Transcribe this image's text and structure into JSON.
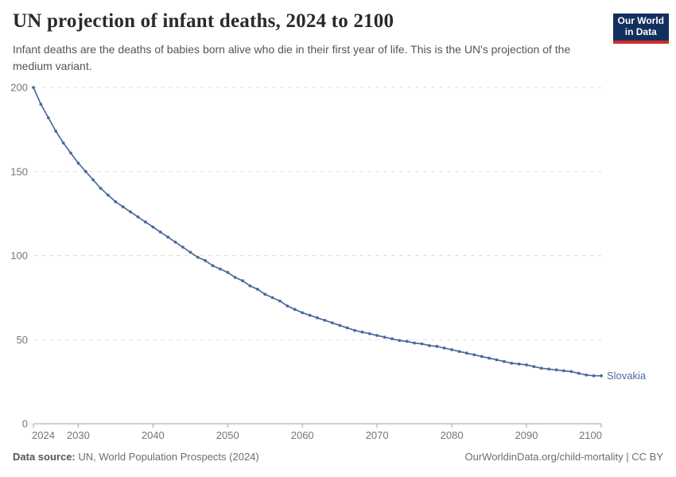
{
  "header": {
    "title": "UN projection of infant deaths, 2024 to 2100",
    "subtitle": "Infant deaths are the deaths of babies born alive who die in their first year of life. This is the UN's projection of the medium variant.",
    "logo": {
      "line1": "Our World",
      "line2": "in Data"
    }
  },
  "chart_data": {
    "type": "line",
    "title": "UN projection of infant deaths, 2024 to 2100",
    "xlabel": "",
    "ylabel": "",
    "xlim": [
      2024,
      2100
    ],
    "ylim": [
      0,
      200
    ],
    "x_ticks": [
      2024,
      2030,
      2040,
      2050,
      2060,
      2070,
      2080,
      2090,
      2100
    ],
    "y_ticks": [
      0,
      50,
      100,
      150,
      200
    ],
    "grid": "horizontal-dashed",
    "legend_position": "end-of-line-label",
    "x_start": 2024,
    "x_step": 1,
    "series": [
      {
        "name": "Slovakia",
        "color": "#4c6a9c",
        "values": [
          200,
          190,
          182,
          174,
          167,
          161,
          155,
          150,
          145,
          140,
          136,
          132,
          129,
          126,
          123,
          120,
          117,
          114,
          111,
          108,
          105,
          102,
          99,
          97,
          94,
          92,
          90,
          87,
          85,
          82,
          80,
          77,
          75,
          73,
          70,
          68,
          66,
          64.5,
          63,
          61.5,
          60,
          58.5,
          57,
          55.5,
          54.5,
          53.5,
          52.5,
          51.5,
          50.5,
          49.5,
          49,
          48,
          47.5,
          46.5,
          46,
          45,
          44,
          43,
          42,
          41,
          40,
          39,
          38,
          37,
          36,
          35.5,
          35,
          34,
          33,
          32.5,
          32,
          31.5,
          31,
          30,
          29,
          28.5,
          28.5
        ]
      }
    ]
  },
  "footer": {
    "datasource_label": "Data source:",
    "datasource_value": " UN, World Population Prospects (2024)",
    "link": "OurWorldinData.org/child-mortality | CC BY"
  },
  "colors": {
    "line": "#4c6a9c",
    "entity_label": "#4c6a9c",
    "gridline": "#dddddd",
    "axis": "#a3a3a3",
    "tick_label": "#757575",
    "logo_navy": "#12305e",
    "logo_red": "#cf2d28"
  }
}
